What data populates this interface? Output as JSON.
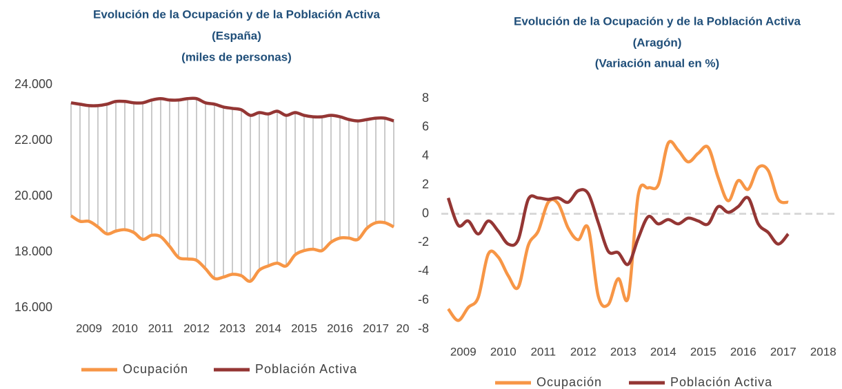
{
  "chart_data": [
    {
      "type": "line",
      "title": "Evolución de la Ocupación y de la Población Activa",
      "subtitle": [
        "(España)",
        "(miles de personas)"
      ],
      "categories": [
        null,
        null,
        "2009",
        null,
        null,
        null,
        "2010",
        null,
        null,
        null,
        "2011",
        null,
        null,
        null,
        "2012",
        null,
        null,
        null,
        "2013",
        null,
        null,
        null,
        "2014",
        null,
        null,
        null,
        "2015",
        null,
        null,
        null,
        "2016",
        null,
        null,
        null,
        "2017",
        null,
        null,
        "20"
      ],
      "series": [
        {
          "name": "Ocupación",
          "color": "#f79646",
          "values": [
            19300,
            19100,
            19100,
            18900,
            18650,
            18750,
            18800,
            18700,
            18450,
            18600,
            18550,
            18200,
            17800,
            17750,
            17700,
            17400,
            17050,
            17100,
            17200,
            17150,
            16950,
            17350,
            17500,
            17600,
            17500,
            17900,
            18050,
            18100,
            18050,
            18350,
            18500,
            18500,
            18450,
            18850,
            19050,
            19050,
            18900,
            null
          ]
        },
        {
          "name": "Población Activa",
          "color": "#943634",
          "values": [
            23350,
            23300,
            23250,
            23250,
            23300,
            23400,
            23400,
            23350,
            23350,
            23450,
            23500,
            23450,
            23450,
            23500,
            23500,
            23350,
            23300,
            23200,
            23150,
            23100,
            22900,
            23000,
            22950,
            23050,
            22900,
            23000,
            22900,
            22850,
            22850,
            22900,
            22850,
            22750,
            22700,
            22750,
            22800,
            22800,
            22700,
            null
          ]
        }
      ],
      "ylim": [
        16000,
        24000
      ],
      "yticks": [
        {
          "value": 16000,
          "label": "16.000"
        },
        {
          "value": 18000,
          "label": "18.000"
        },
        {
          "value": 20000,
          "label": "20.000"
        },
        {
          "value": 22000,
          "label": "22.000"
        },
        {
          "value": 24000,
          "label": "24.000"
        }
      ],
      "drop_lines": true
    },
    {
      "type": "line",
      "title": "Evolución de la Ocupación y de la Población Activa",
      "subtitle": [
        "(Aragón)",
        "(Variación anual en %)"
      ],
      "categories": [
        null,
        "2009",
        null,
        null,
        null,
        "2010",
        null,
        null,
        null,
        "2011",
        null,
        null,
        null,
        "2012",
        null,
        null,
        null,
        "2013",
        null,
        null,
        null,
        "2014",
        null,
        null,
        null,
        "2015",
        null,
        null,
        null,
        "2016",
        null,
        null,
        null,
        "2017",
        null,
        null,
        null,
        "2018",
        null,
        null
      ],
      "series": [
        {
          "name": "Ocupación",
          "color": "#f79646",
          "values": [
            -6.6,
            -7.4,
            -6.5,
            -5.8,
            -2.8,
            -3.0,
            -4.3,
            -5.1,
            -2.2,
            -1.2,
            0.8,
            0.7,
            -1.0,
            -1.8,
            -1.0,
            -5.7,
            -6.3,
            -4.5,
            -5.8,
            1.3,
            1.8,
            2.0,
            4.9,
            4.4,
            3.6,
            4.2,
            4.6,
            2.5,
            0.9,
            2.3,
            1.7,
            3.2,
            3.0,
            1.0,
            0.8,
            null,
            null,
            null,
            null,
            null
          ]
        },
        {
          "name": "Población Activa",
          "color": "#943634",
          "values": [
            1.1,
            -0.8,
            -0.5,
            -1.4,
            -0.5,
            -1.2,
            -2.1,
            -1.8,
            1.0,
            1.1,
            1.0,
            1.1,
            0.8,
            1.6,
            1.4,
            -0.6,
            -2.6,
            -2.7,
            -3.5,
            -1.7,
            -0.2,
            -0.7,
            -0.4,
            -0.7,
            -0.3,
            -0.5,
            -0.7,
            0.5,
            0.1,
            0.5,
            1.1,
            -0.7,
            -1.3,
            -2.1,
            -1.4,
            null,
            null,
            null,
            null,
            null
          ]
        }
      ],
      "ylim": [
        -8,
        8
      ],
      "yticks": [
        -8,
        -6,
        -4,
        -2,
        0,
        2,
        4,
        6,
        8
      ],
      "zero_line": true
    }
  ]
}
